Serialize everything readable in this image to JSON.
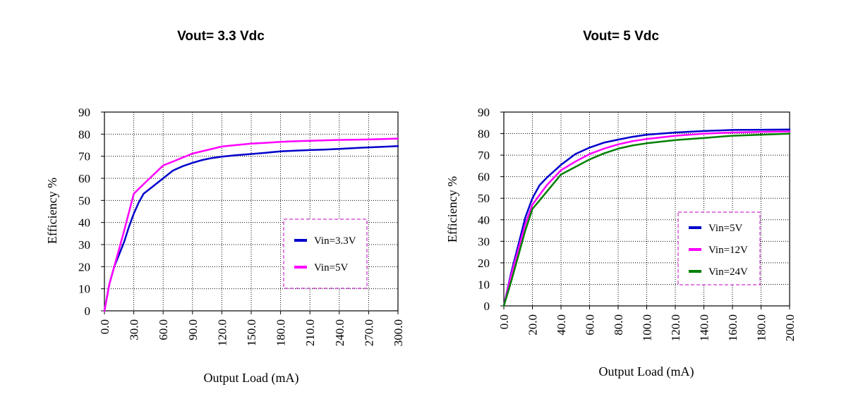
{
  "chart_data": [
    {
      "type": "line",
      "title": "Vout= 3.3 Vdc",
      "xlabel": "Output Load (mA)",
      "ylabel": "Efficiency %",
      "xlim": [
        0,
        300
      ],
      "ylim": [
        0,
        90
      ],
      "x_ticks": [
        "0.0",
        "30.0",
        "60.0",
        "90.0",
        "120.0",
        "150.0",
        "180.0",
        "210.0",
        "240.0",
        "270.0",
        "300.0"
      ],
      "y_ticks": [
        "0",
        "10",
        "20",
        "30",
        "40",
        "50",
        "60",
        "70",
        "80",
        "90"
      ],
      "grid": true,
      "legend_position": "lower-right",
      "series": [
        {
          "name": "Vin=3.3V",
          "color": "#0000cc",
          "x": [
            0,
            5,
            10,
            20,
            25,
            30,
            35,
            40,
            50,
            60,
            70,
            80,
            90,
            100,
            110,
            120,
            135,
            150,
            165,
            180,
            195,
            210,
            225,
            240,
            255,
            270,
            285,
            300
          ],
          "y": [
            0,
            12,
            20,
            31,
            38,
            44,
            49,
            53,
            56.5,
            60,
            63.5,
            65.5,
            67,
            68.3,
            69.2,
            69.8,
            70.5,
            71,
            71.6,
            72.2,
            72.5,
            72.8,
            73,
            73.3,
            73.7,
            74,
            74.3,
            74.6
          ]
        },
        {
          "name": "Vin=5V",
          "color": "#ff00ff",
          "x": [
            0,
            5,
            10,
            20,
            30,
            45,
            60,
            75,
            90,
            105,
            120,
            135,
            150,
            165,
            180,
            195,
            210,
            225,
            240,
            255,
            270,
            285,
            300
          ],
          "y": [
            0,
            12,
            20,
            36,
            53,
            59.5,
            65.8,
            68.5,
            71.2,
            72.8,
            74.4,
            75.1,
            75.7,
            76.1,
            76.5,
            76.8,
            77,
            77.2,
            77.4,
            77.5,
            77.6,
            77.8,
            78
          ]
        }
      ]
    },
    {
      "type": "line",
      "title": "Vout= 5 Vdc",
      "xlabel": "Output Load (mA)",
      "ylabel": "Efficiency %",
      "xlim": [
        0,
        200
      ],
      "ylim": [
        0,
        90
      ],
      "x_ticks": [
        "0.0",
        "20.0",
        "40.0",
        "60.0",
        "80.0",
        "100.0",
        "120.0",
        "140.0",
        "160.0",
        "180.0",
        "200.0"
      ],
      "y_ticks": [
        "0",
        "10",
        "20",
        "30",
        "40",
        "50",
        "60",
        "70",
        "80",
        "90"
      ],
      "grid": true,
      "legend_position": "lower-right",
      "series": [
        {
          "name": "Vin=5V",
          "color": "#0000cc",
          "x": [
            0,
            5,
            10,
            15,
            20,
            25,
            30,
            40,
            50,
            60,
            70,
            80,
            90,
            100,
            120,
            140,
            160,
            180,
            200
          ],
          "y": [
            0,
            15,
            28,
            41,
            50,
            56,
            59.5,
            65.5,
            70.5,
            73.5,
            75.8,
            77.2,
            78.5,
            79.5,
            80.5,
            81.2,
            81.7,
            81.8,
            81.9
          ]
        },
        {
          "name": "Vin=12V",
          "color": "#ff00ff",
          "x": [
            0,
            5,
            10,
            15,
            20,
            30,
            40,
            50,
            60,
            70,
            80,
            90,
            100,
            120,
            140,
            160,
            180,
            200
          ],
          "y": [
            0,
            14,
            26,
            38,
            47,
            56,
            63,
            67,
            70.5,
            73,
            75,
            76.5,
            77.5,
            79,
            80,
            80.5,
            80.8,
            81
          ]
        },
        {
          "name": "Vin=24V",
          "color": "#008000",
          "x": [
            0,
            5,
            10,
            15,
            20,
            30,
            40,
            50,
            60,
            70,
            80,
            90,
            100,
            120,
            140,
            160,
            180,
            200
          ],
          "y": [
            0,
            11,
            23,
            35,
            45,
            53,
            61,
            64.5,
            68,
            70.8,
            73,
            74.5,
            75.5,
            77,
            78,
            79,
            79.5,
            80
          ]
        }
      ]
    }
  ]
}
